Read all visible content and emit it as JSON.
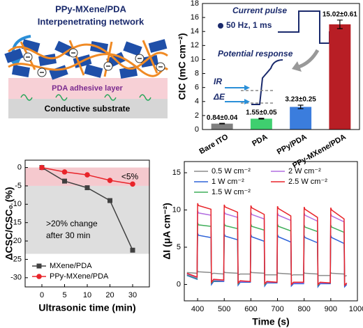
{
  "schematic": {
    "title": "PPy-MXene/PDA",
    "subtitle": "Interpenetrating network",
    "adhesive_layer": "PDA adhesive layer",
    "substrate": "Conductive substrate"
  },
  "chart_data": [
    {
      "type": "bar",
      "ylabel": "CIC (mC cm⁻²)",
      "categories": [
        "Bare ITO",
        "PDA",
        "PPy/PDA",
        "PPy-MXene/PDA"
      ],
      "values": [
        0.84,
        1.55,
        3.23,
        15.02
      ],
      "errors": [
        0.04,
        0.05,
        0.25,
        0.61
      ],
      "value_labels": [
        "0.84±0.04",
        "1.55±0.05",
        "3.23±0.25",
        "15.02±0.61"
      ],
      "colors": [
        "#7f7f7f",
        "#3fcf6f",
        "#3b7ddd",
        "#b81e25"
      ],
      "ylim": [
        0,
        18
      ],
      "yticks": [
        0,
        2,
        4,
        6,
        8,
        10,
        12,
        14,
        16,
        18
      ],
      "annotations": [
        "Current pulse",
        "50 Hz, 1 ms",
        "Potential response",
        "IR",
        "ΔE"
      ]
    },
    {
      "type": "line",
      "xlabel": "Ultrasonic time (min)",
      "ylabel": "ΔCSC/CSC₀ (%)",
      "categories": [
        "0",
        "5",
        "10",
        "20",
        "30"
      ],
      "series": [
        {
          "name": "MXene/PDA",
          "color": "#404040",
          "marker": "square",
          "values": [
            0,
            -3.7,
            -5.5,
            -9,
            -22.5
          ]
        },
        {
          "name": "PPy-MXene/PDA",
          "color": "#e8242a",
          "marker": "circle",
          "values": [
            0,
            -1.2,
            -2,
            -3.5,
            -4.5
          ]
        }
      ],
      "ylim": [
        -32.5,
        2
      ],
      "yticks": [
        0,
        -5,
        -10,
        -15,
        -20,
        -25,
        -30
      ],
      "bands": [
        {
          "from": 0,
          "to": -5,
          "color": "#f5c9ce",
          "label": [
            "<5%"
          ]
        },
        {
          "from": -5,
          "to": -23.5,
          "color": "#dedede",
          "label": [
            ">20% change",
            "after 30 min"
          ]
        }
      ],
      "legend": "lower left"
    },
    {
      "type": "line",
      "xlabel": "Time (s)",
      "ylabel": "ΔI (μA cm⁻²)",
      "x": [
        360,
        398,
        400,
        403,
        450,
        452,
        460,
        498,
        500,
        503,
        550,
        552,
        560,
        598,
        600,
        603,
        650,
        652,
        660,
        698,
        700,
        703,
        750,
        752,
        760,
        798,
        800,
        803,
        850,
        852,
        860,
        898,
        900,
        903,
        950,
        952,
        960
      ],
      "series": [
        {
          "name": "0.5 W cm⁻²",
          "color": "#8c8c8c",
          "values": [
            1.6,
            1.5,
            1.8,
            1.7,
            1.6,
            1.4,
            1.5,
            1.4,
            1.7,
            1.6,
            1.5,
            1.3,
            1.4,
            1.4,
            1.7,
            1.6,
            1.5,
            1.3,
            1.3,
            1.3,
            1.6,
            1.5,
            1.4,
            1.2,
            1.3,
            1.3,
            1.6,
            1.5,
            1.4,
            1.2,
            1.2,
            1.2,
            1.6,
            1.5,
            1.4,
            1.1,
            1.2
          ]
        },
        {
          "name": "1 W cm⁻²",
          "color": "#2f63d8",
          "values": [
            1.2,
            0.7,
            6.9,
            6.6,
            6.3,
            0.0,
            0.4,
            0.4,
            6.8,
            6.5,
            6.0,
            -0.1,
            0.3,
            0.3,
            6.7,
            6.4,
            5.8,
            -0.2,
            0.2,
            0.2,
            6.7,
            6.4,
            5.7,
            -0.2,
            0.1,
            0.1,
            6.6,
            6.3,
            5.6,
            -0.3,
            0.1,
            0.1,
            6.6,
            6.3,
            5.5,
            -0.3,
            0.0
          ]
        },
        {
          "name": "1.5 W cm⁻²",
          "color": "#3fae5a",
          "values": [
            1.3,
            0.8,
            8.3,
            8.0,
            7.8,
            0.2,
            0.5,
            0.5,
            8.2,
            7.9,
            7.5,
            0.1,
            0.4,
            0.4,
            8.1,
            7.8,
            7.3,
            0.0,
            0.3,
            0.3,
            8.1,
            7.8,
            7.2,
            0.0,
            0.2,
            0.2,
            8.0,
            7.7,
            7.1,
            -0.1,
            0.2,
            0.2,
            8.0,
            7.7,
            7.0,
            -0.1,
            0.1
          ]
        },
        {
          "name": "2 W cm⁻²",
          "color": "#b26ee0",
          "values": [
            1.4,
            0.9,
            9.9,
            9.6,
            9.3,
            0.3,
            0.6,
            0.5,
            9.8,
            9.5,
            9.0,
            0.2,
            0.4,
            0.4,
            9.7,
            9.4,
            8.8,
            0.1,
            0.3,
            0.3,
            9.6,
            9.3,
            8.6,
            0.0,
            0.2,
            0.2,
            9.6,
            9.3,
            8.5,
            0.0,
            0.2,
            0.2,
            9.5,
            9.2,
            8.4,
            -0.1,
            0.1
          ]
        },
        {
          "name": "2.5 W cm⁻²",
          "color": "#e8242a",
          "values": [
            1.5,
            1.0,
            10.9,
            10.6,
            10.1,
            0.3,
            0.7,
            0.6,
            10.7,
            10.4,
            9.7,
            0.2,
            0.5,
            0.4,
            10.6,
            10.3,
            9.4,
            0.1,
            0.4,
            0.3,
            10.5,
            10.2,
            9.2,
            0.0,
            0.3,
            0.3,
            10.4,
            10.1,
            9.0,
            0.0,
            0.3,
            0.2,
            10.3,
            10.0,
            8.8,
            -0.1,
            0.2
          ]
        }
      ],
      "xlim": [
        350,
        1000
      ],
      "xticks": [
        400,
        500,
        600,
        700,
        800,
        900,
        1000
      ],
      "ylim": [
        -2.2,
        16.5
      ],
      "yticks": [
        0,
        5,
        10,
        15
      ],
      "legend": "upper"
    }
  ]
}
